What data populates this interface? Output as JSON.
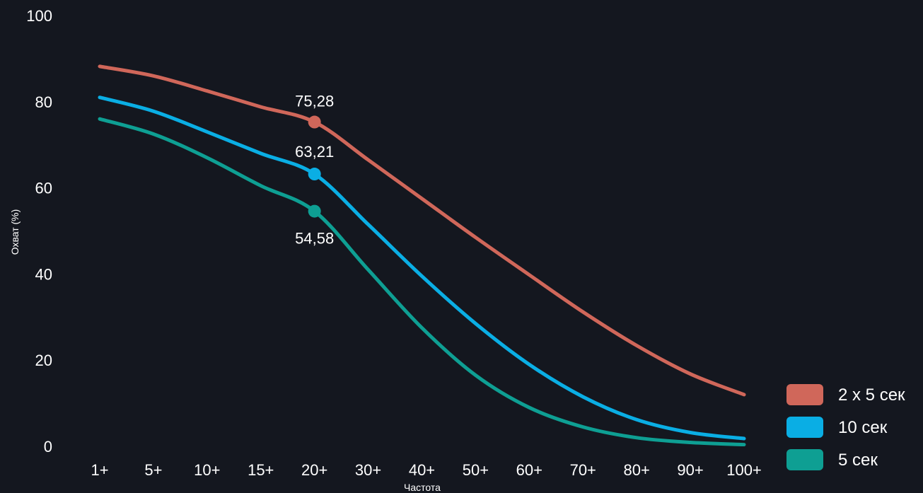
{
  "chart_data": {
    "type": "line",
    "xlabel": "Частота",
    "ylabel": "Охват (%)",
    "ylim": [
      0,
      100
    ],
    "yticks": [
      "0",
      "20",
      "40",
      "60",
      "80",
      "100"
    ],
    "categories": [
      "1+",
      "5+",
      "10+",
      "15+",
      "20+",
      "30+",
      "40+",
      "50+",
      "60+",
      "70+",
      "80+",
      "90+",
      "100+"
    ],
    "series": [
      {
        "name": "2 x 5 сек",
        "color": "#d0675a",
        "values": [
          88.2,
          86.0,
          82.5,
          78.8,
          75.28,
          66.5,
          57.5,
          48.5,
          39.8,
          31.2,
          23.4,
          16.8,
          12.0
        ],
        "highlight_index": 4,
        "highlight_label": "75,28"
      },
      {
        "name": "10 сек",
        "color": "#0aaee4",
        "values": [
          81.0,
          77.8,
          73.0,
          68.0,
          63.21,
          51.5,
          39.5,
          28.5,
          19.0,
          11.5,
          6.2,
          3.2,
          1.8
        ],
        "highlight_index": 4,
        "highlight_label": "63,21"
      },
      {
        "name": "5 сек",
        "color": "#0e9f93",
        "values": [
          76.0,
          72.5,
          67.0,
          60.5,
          54.58,
          41.0,
          27.5,
          16.5,
          9.0,
          4.5,
          2.0,
          0.9,
          0.4
        ],
        "highlight_index": 4,
        "highlight_label": "54,58"
      }
    ],
    "legend": "right"
  }
}
